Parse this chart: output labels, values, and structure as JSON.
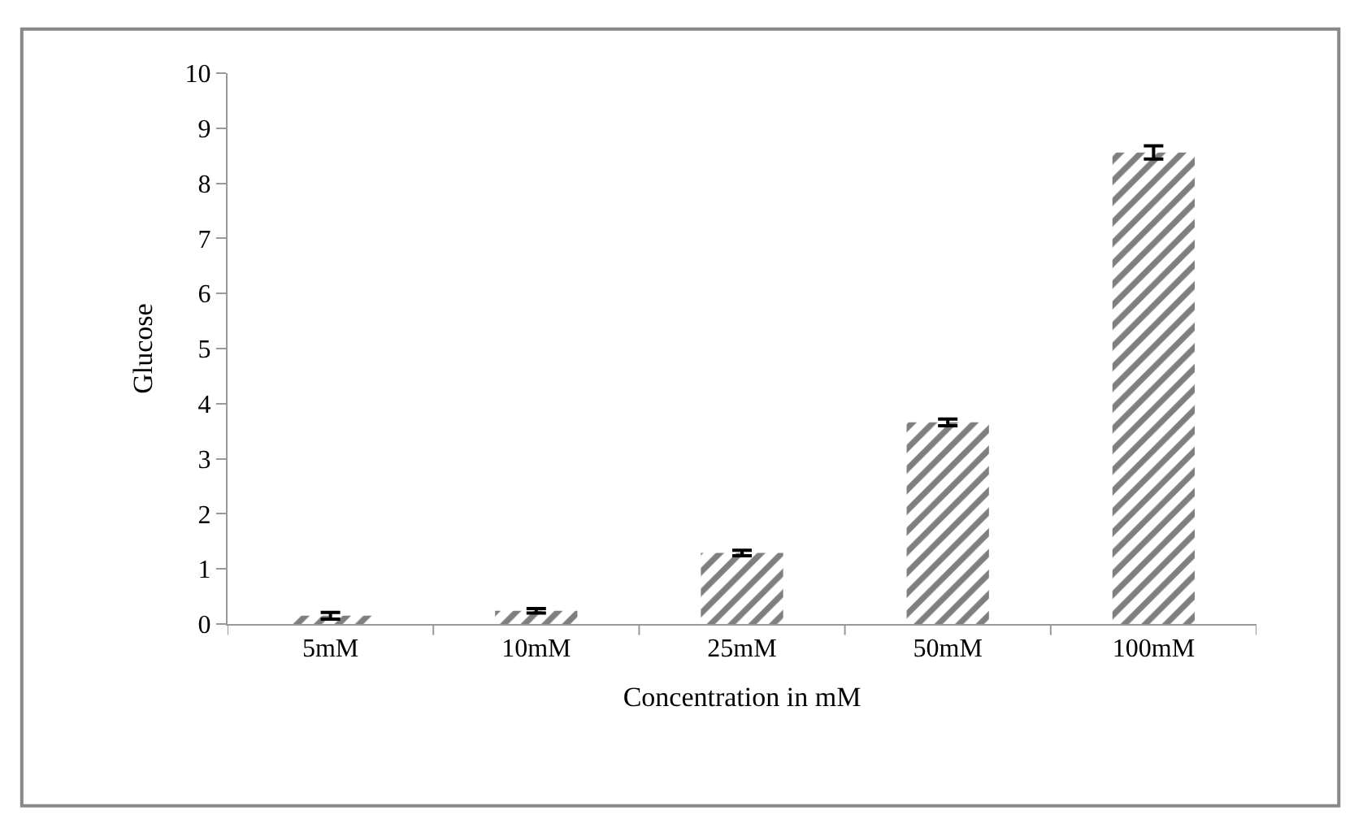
{
  "chart_data": {
    "type": "bar",
    "xlabel": "Concentration in mM",
    "ylabel": "Glucose",
    "categories": [
      "5mM",
      "10mM",
      "25mM",
      "50mM",
      "100mM"
    ],
    "values": [
      0.15,
      0.24,
      1.29,
      3.66,
      8.56
    ],
    "errors": [
      0.06,
      0.04,
      0.05,
      0.06,
      0.12
    ],
    "color": "#000000",
    "ylim": [
      0,
      10
    ],
    "yticks": [
      0,
      1,
      2,
      3,
      4,
      5,
      6,
      7,
      8,
      9,
      10
    ]
  }
}
